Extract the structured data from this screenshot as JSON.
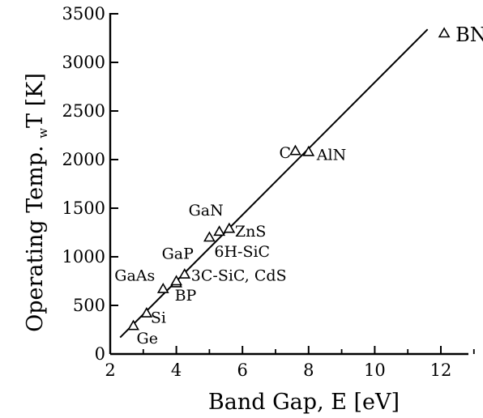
{
  "chart_data": {
    "type": "scatter",
    "xlabel": "Band Gap, E [eV]",
    "ylabel": "Operating Temp. T [K]",
    "ylabel_sub": "w",
    "xlim": [
      2,
      13
    ],
    "ylim": [
      0,
      3500
    ],
    "xticks": [
      2,
      4,
      6,
      8,
      10,
      12
    ],
    "yticks": [
      0,
      500,
      1000,
      1500,
      2000,
      2500,
      3000,
      3500
    ],
    "points": [
      {
        "label": "Ge",
        "x": 2.7,
        "y": 290
      },
      {
        "label": "Si",
        "x": 3.1,
        "y": 420
      },
      {
        "label": "GaAs",
        "x": 3.6,
        "y": 670
      },
      {
        "label": "GaP",
        "x": 4.0,
        "y": 730
      },
      {
        "label": "BP",
        "x": 4.0,
        "y": 750
      },
      {
        "label": "3C-SiC, CdS",
        "x": 4.25,
        "y": 820
      },
      {
        "label": "6H-SiC",
        "x": 5.0,
        "y": 1200
      },
      {
        "label": "GaN",
        "x": 5.3,
        "y": 1260
      },
      {
        "label": "ZnS",
        "x": 5.6,
        "y": 1290
      },
      {
        "label": "C",
        "x": 7.6,
        "y": 2090
      },
      {
        "label": "AlN",
        "x": 8.0,
        "y": 2080
      },
      {
        "label": "BN",
        "x": 12.1,
        "y": 3300
      }
    ],
    "fit_line": {
      "x": [
        2.3,
        11.6
      ],
      "y": [
        170,
        3340
      ]
    },
    "grid": false,
    "legend": "none"
  }
}
